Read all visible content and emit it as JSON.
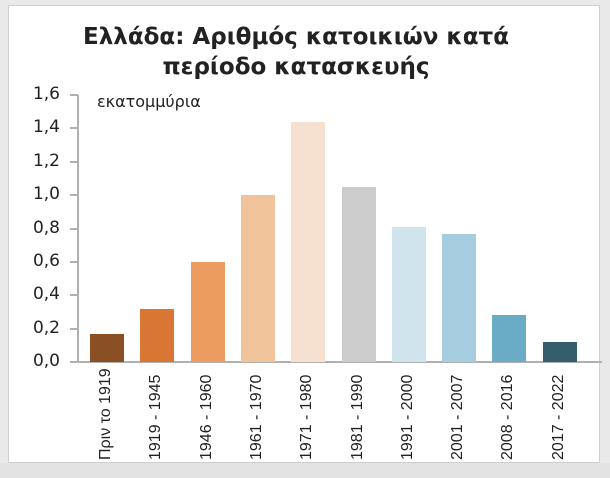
{
  "chart_data": {
    "type": "bar",
    "title": "Ελλάδα: Αριθμός κατοικιών κατά περίοδο κατασκευής",
    "title_lines": [
      "Ελλάδα: Αριθμός κατοικιών κατά",
      "περίοδο κατασκευής"
    ],
    "unit_label": "εκατομμύρια",
    "xlabel": "",
    "ylabel": "εκατομμύρια",
    "ylim": [
      0,
      1.6
    ],
    "yticks": [
      "0,0",
      "0,2",
      "0,4",
      "0,6",
      "0,8",
      "1,0",
      "1,2",
      "1,4",
      "1,6"
    ],
    "grid": false,
    "legend": null,
    "categories": [
      "Πριν το 1919",
      "1919 - 1945",
      "1946 - 1960",
      "1961 - 1970",
      "1971 - 1980",
      "1981 - 1990",
      "1991 - 2000",
      "2001 - 2007",
      "2008 - 2016",
      "2017 - 2022"
    ],
    "values": [
      0.17,
      0.32,
      0.6,
      1.0,
      1.44,
      1.05,
      0.81,
      0.77,
      0.28,
      0.12
    ],
    "colors": [
      "#8b4f24",
      "#d97634",
      "#eb9c5e",
      "#f1c39b",
      "#f6e1d1",
      "#cccccc",
      "#d0e4ee",
      "#a6cddf",
      "#6aacc6",
      "#355e6d"
    ]
  }
}
